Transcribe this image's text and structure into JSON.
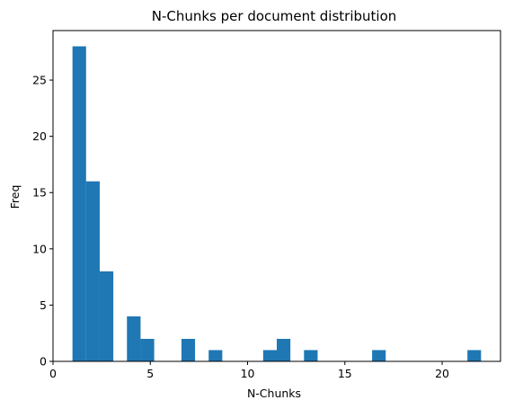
{
  "chart_data": {
    "type": "bar",
    "title": "N-Chunks per document distribution",
    "xlabel": "N-Chunks",
    "ylabel": "Freq",
    "xlim": [
      0,
      23
    ],
    "ylim": [
      0,
      29.4
    ],
    "xticks": [
      0,
      5,
      10,
      15,
      20
    ],
    "yticks": [
      0,
      5,
      10,
      15,
      20,
      25
    ],
    "grid": false,
    "bar_color": "#1f77b4",
    "bins": [
      {
        "start": 1.0,
        "end": 1.7,
        "count": 28
      },
      {
        "start": 1.7,
        "end": 2.4,
        "count": 16
      },
      {
        "start": 2.4,
        "end": 3.1,
        "count": 8
      },
      {
        "start": 3.1,
        "end": 3.8,
        "count": 0
      },
      {
        "start": 3.8,
        "end": 4.5,
        "count": 4
      },
      {
        "start": 4.5,
        "end": 5.2,
        "count": 2
      },
      {
        "start": 5.2,
        "end": 5.9,
        "count": 0
      },
      {
        "start": 5.9,
        "end": 6.6,
        "count": 0
      },
      {
        "start": 6.6,
        "end": 7.3,
        "count": 2
      },
      {
        "start": 7.3,
        "end": 8.0,
        "count": 0
      },
      {
        "start": 8.0,
        "end": 8.7,
        "count": 1
      },
      {
        "start": 8.7,
        "end": 9.4,
        "count": 0
      },
      {
        "start": 9.4,
        "end": 10.1,
        "count": 0
      },
      {
        "start": 10.1,
        "end": 10.8,
        "count": 0
      },
      {
        "start": 10.8,
        "end": 11.5,
        "count": 1
      },
      {
        "start": 11.5,
        "end": 12.2,
        "count": 2
      },
      {
        "start": 12.2,
        "end": 12.9,
        "count": 0
      },
      {
        "start": 12.9,
        "end": 13.6,
        "count": 1
      },
      {
        "start": 13.6,
        "end": 14.3,
        "count": 0
      },
      {
        "start": 14.3,
        "end": 15.0,
        "count": 0
      },
      {
        "start": 15.0,
        "end": 15.7,
        "count": 0
      },
      {
        "start": 15.7,
        "end": 16.4,
        "count": 0
      },
      {
        "start": 16.4,
        "end": 17.1,
        "count": 1
      },
      {
        "start": 17.1,
        "end": 17.8,
        "count": 0
      },
      {
        "start": 17.8,
        "end": 18.5,
        "count": 0
      },
      {
        "start": 18.5,
        "end": 19.2,
        "count": 0
      },
      {
        "start": 19.2,
        "end": 19.9,
        "count": 0
      },
      {
        "start": 19.9,
        "end": 20.6,
        "count": 0
      },
      {
        "start": 20.6,
        "end": 21.3,
        "count": 0
      },
      {
        "start": 21.3,
        "end": 22.0,
        "count": 1
      }
    ]
  }
}
